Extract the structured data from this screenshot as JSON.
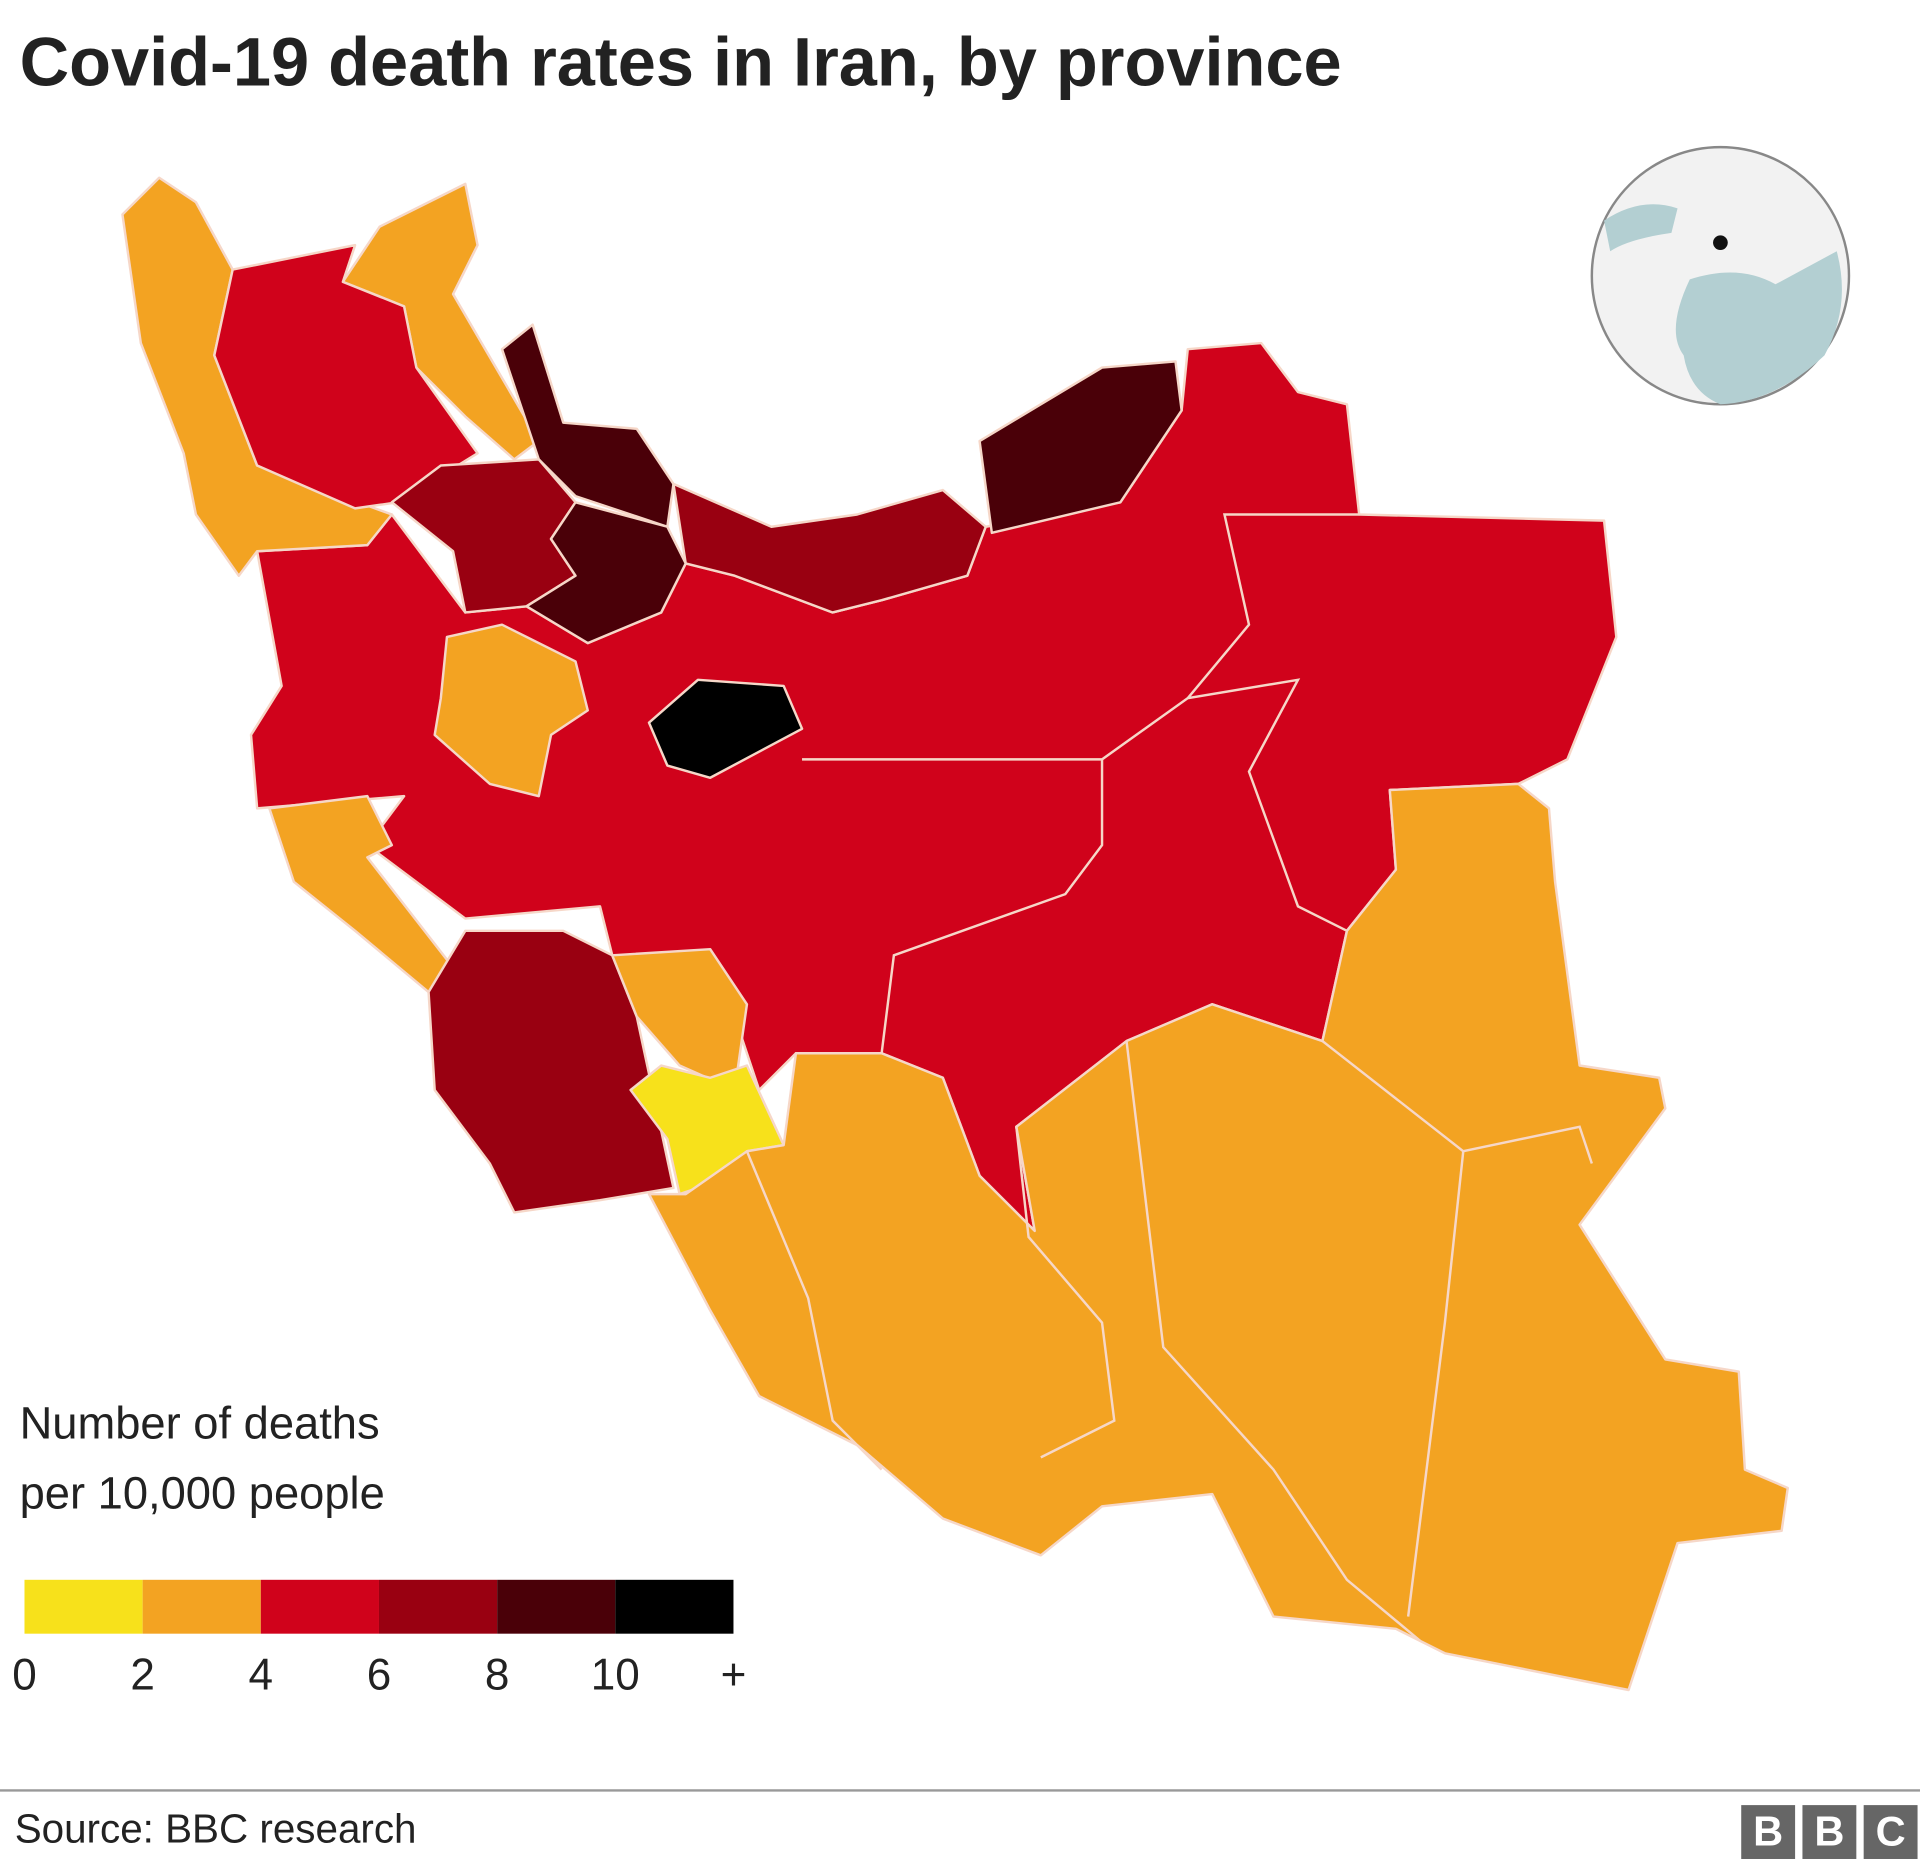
{
  "title": "Covid-19 death rates in Iran, by province",
  "legend": {
    "title": [
      "Number of deaths",
      "per 10,000 people"
    ],
    "colors": [
      "#f7e11b",
      "#f3a322",
      "#d0021b",
      "#990011",
      "#4a0008",
      "#000000"
    ],
    "ticks": [
      0,
      2,
      4,
      6,
      8,
      10
    ],
    "open_end_label": "+"
  },
  "source": "Source: BBC research",
  "logo": [
    "B",
    "B",
    "C"
  ]
}
